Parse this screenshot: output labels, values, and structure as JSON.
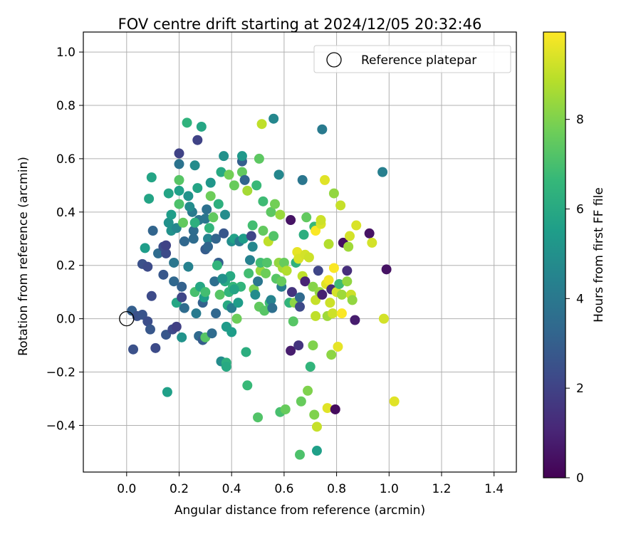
{
  "chart_data": {
    "type": "scatter",
    "title": "FOV centre drift starting at 2024/12/05 20:32:46",
    "xlabel": "Angular distance from reference (arcmin)",
    "ylabel": "Rotation from reference (arcmin)",
    "xlim": [
      -0.165,
      1.485
    ],
    "ylim": [
      -0.575,
      1.075
    ],
    "xticks": [
      "0.0",
      "0.2",
      "0.4",
      "0.6",
      "0.8",
      "1.0",
      "1.2",
      "1.4"
    ],
    "xtick_values": [
      0,
      0.2,
      0.4,
      0.6,
      0.8,
      1.0,
      1.2,
      1.4
    ],
    "yticks": [
      "−0.4",
      "−0.2",
      "0.0",
      "0.2",
      "0.4",
      "0.6",
      "0.8",
      "1.0"
    ],
    "ytick_values": [
      -0.4,
      -0.2,
      0,
      0.2,
      0.4,
      0.6,
      0.8,
      1.0
    ],
    "grid": true,
    "legend": {
      "placement": "top-right",
      "label": "Reference platepar"
    },
    "reference_point": {
      "x": 0.0,
      "y": 0.0
    },
    "colorbar": {
      "label": "Hours from first FF file",
      "range": [
        0,
        9.95
      ],
      "ticks": [
        "0",
        "2",
        "4",
        "6",
        "8"
      ],
      "tick_values": [
        0,
        2,
        4,
        6,
        8
      ],
      "colormap": "viridis",
      "colormap_stops": [
        "#440154",
        "#482878",
        "#3e4989",
        "#31688e",
        "#26828e",
        "#1f9e89",
        "#35b779",
        "#6ece58",
        "#b5de2b",
        "#fde725"
      ]
    },
    "points": [
      [
        0.02,
        0.03,
        3.0
      ],
      [
        0.025,
        -0.115,
        2.5
      ],
      [
        0.04,
        0.01,
        2.5
      ],
      [
        0.06,
        0.015,
        2.6
      ],
      [
        0.06,
        0.205,
        2.5
      ],
      [
        0.08,
        0.195,
        2.3
      ],
      [
        0.08,
        -0.01,
        2.4
      ],
      [
        0.09,
        -0.04,
        2.7
      ],
      [
        0.095,
        0.085,
        2.3
      ],
      [
        0.1,
        0.33,
        3.2
      ],
      [
        0.11,
        -0.11,
        2.3
      ],
      [
        0.12,
        0.245,
        3.5
      ],
      [
        0.14,
        0.27,
        2.4
      ],
      [
        0.14,
        0.165,
        2.7
      ],
      [
        0.15,
        0.245,
        2.3
      ],
      [
        0.15,
        0.275,
        2.0
      ],
      [
        0.15,
        -0.06,
        2.7
      ],
      [
        0.16,
        0.36,
        5.0
      ],
      [
        0.17,
        0.39,
        5.5
      ],
      [
        0.175,
        -0.04,
        2.2
      ],
      [
        0.18,
        0.21,
        3.9
      ],
      [
        0.18,
        0.14,
        3.3
      ],
      [
        0.19,
        -0.03,
        1.9
      ],
      [
        0.19,
        0.06,
        5.9
      ],
      [
        0.2,
        0.48,
        5.6
      ],
      [
        0.2,
        0.62,
        2.0
      ],
      [
        0.2,
        0.58,
        3.8
      ],
      [
        0.2,
        0.52,
        7.3
      ],
      [
        0.2,
        0.43,
        7.1
      ],
      [
        0.21,
        0.12,
        3.1
      ],
      [
        0.21,
        0.08,
        2.1
      ],
      [
        0.21,
        -0.07,
        5.1
      ],
      [
        0.22,
        0.29,
        3.3
      ],
      [
        0.22,
        0.04,
        3.5
      ],
      [
        0.23,
        0.735,
        6.4
      ],
      [
        0.235,
        0.46,
        5.1
      ],
      [
        0.235,
        0.195,
        4.4
      ],
      [
        0.25,
        0.4,
        4.1
      ],
      [
        0.255,
        0.33,
        3.5
      ],
      [
        0.255,
        0.3,
        3.5
      ],
      [
        0.26,
        0.575,
        4.8
      ],
      [
        0.26,
        0.1,
        7.0
      ],
      [
        0.265,
        0.02,
        4.1
      ],
      [
        0.27,
        0.67,
        2.0
      ],
      [
        0.27,
        0.49,
        5.8
      ],
      [
        0.275,
        0.37,
        3.9
      ],
      [
        0.275,
        -0.065,
        3.4
      ],
      [
        0.28,
        0.12,
        5.9
      ],
      [
        0.285,
        0.72,
        5.9
      ],
      [
        0.29,
        0.06,
        3.1
      ],
      [
        0.29,
        -0.08,
        2.9
      ],
      [
        0.295,
        0.08,
        5.5
      ],
      [
        0.3,
        0.26,
        2.9
      ],
      [
        0.3,
        0.375,
        3.9
      ],
      [
        0.3,
        -0.07,
        7.3
      ],
      [
        0.305,
        0.41,
        3.7
      ],
      [
        0.31,
        0.3,
        4.5
      ],
      [
        0.31,
        0.27,
        3.2
      ],
      [
        0.315,
        0.34,
        6.5
      ],
      [
        0.32,
        0.51,
        5.2
      ],
      [
        0.325,
        -0.055,
        3.5
      ],
      [
        0.33,
        0.38,
        7.5
      ],
      [
        0.335,
        0.14,
        3.6
      ],
      [
        0.34,
        0.3,
        3.2
      ],
      [
        0.34,
        0.02,
        3.3
      ],
      [
        0.35,
        0.43,
        6.3
      ],
      [
        0.35,
        0.21,
        3.0
      ],
      [
        0.355,
        0.09,
        7.3
      ],
      [
        0.36,
        0.55,
        6.0
      ],
      [
        0.36,
        -0.16,
        4.8
      ],
      [
        0.37,
        0.32,
        2.7
      ],
      [
        0.37,
        0.61,
        5.0
      ],
      [
        0.375,
        0.39,
        4.8
      ],
      [
        0.375,
        0.14,
        6.0
      ],
      [
        0.38,
        -0.03,
        5.4
      ],
      [
        0.38,
        -0.165,
        6.3
      ],
      [
        0.38,
        -0.18,
        6.0
      ],
      [
        0.385,
        0.05,
        6.0
      ],
      [
        0.39,
        0.54,
        7.8
      ],
      [
        0.39,
        0.1,
        6.5
      ],
      [
        0.395,
        0.16,
        6.0
      ],
      [
        0.4,
        0.29,
        4.9
      ],
      [
        0.4,
        0.04,
        4.2
      ],
      [
        0.405,
        0.12,
        6.6
      ],
      [
        0.41,
        0.5,
        7.6
      ],
      [
        0.41,
        0.3,
        5.7
      ],
      [
        0.42,
        0.0,
        7.7
      ],
      [
        0.425,
        0.06,
        5.5
      ],
      [
        0.43,
        0.29,
        4.1
      ],
      [
        0.435,
        0.12,
        6.5
      ],
      [
        0.44,
        0.59,
        3.0
      ],
      [
        0.44,
        0.61,
        5.3
      ],
      [
        0.44,
        0.55,
        7.5
      ],
      [
        0.445,
        0.3,
        5.5
      ],
      [
        0.45,
        0.52,
        3.2
      ],
      [
        0.455,
        -0.125,
        6.2
      ],
      [
        0.46,
        -0.25,
        6.7
      ],
      [
        0.46,
        0.48,
        8.6
      ],
      [
        0.465,
        0.17,
        6.9
      ],
      [
        0.47,
        0.22,
        4.4
      ],
      [
        0.475,
        0.31,
        2.1
      ],
      [
        0.48,
        0.27,
        4.6
      ],
      [
        0.48,
        0.35,
        6.9
      ],
      [
        0.485,
        0.11,
        7.9
      ],
      [
        0.49,
        0.09,
        4.8
      ],
      [
        0.495,
        0.5,
        6.7
      ],
      [
        0.5,
        0.14,
        3.9
      ],
      [
        0.5,
        -0.37,
        7.2
      ],
      [
        0.505,
        0.045,
        7.5
      ],
      [
        0.505,
        0.6,
        7.4
      ],
      [
        0.51,
        0.18,
        8.4
      ],
      [
        0.51,
        0.21,
        6.9
      ],
      [
        0.515,
        0.73,
        9.0
      ],
      [
        0.52,
        0.33,
        7.5
      ],
      [
        0.52,
        0.44,
        6.8
      ],
      [
        0.525,
        0.03,
        7.3
      ],
      [
        0.53,
        0.17,
        7.7
      ],
      [
        0.535,
        0.21,
        7.2
      ],
      [
        0.54,
        0.29,
        9.0
      ],
      [
        0.545,
        0.06,
        6.8
      ],
      [
        0.55,
        0.4,
        7.4
      ],
      [
        0.55,
        0.07,
        4.5
      ],
      [
        0.555,
        0.04,
        3.6
      ],
      [
        0.56,
        0.75,
        4.6
      ],
      [
        0.56,
        0.31,
        7.2
      ],
      [
        0.565,
        0.43,
        7.8
      ],
      [
        0.57,
        0.15,
        7.3
      ],
      [
        0.58,
        0.21,
        8.3
      ],
      [
        0.58,
        0.54,
        4.6
      ],
      [
        0.585,
        0.39,
        8.4
      ],
      [
        0.585,
        -0.35,
        7.0
      ],
      [
        0.59,
        0.12,
        4.2
      ],
      [
        0.59,
        0.14,
        7.6
      ],
      [
        0.595,
        0.19,
        8.6
      ],
      [
        0.6,
        0.21,
        7.6
      ],
      [
        0.605,
        -0.34,
        7.6
      ],
      [
        0.61,
        0.18,
        8.8
      ],
      [
        0.62,
        0.06,
        6.5
      ],
      [
        0.625,
        0.37,
        0.5
      ],
      [
        0.625,
        -0.12,
        0.8
      ],
      [
        0.63,
        0.1,
        1.5
      ],
      [
        0.635,
        -0.01,
        7.3
      ],
      [
        0.64,
        0.06,
        8.2
      ],
      [
        0.645,
        0.21,
        6.4
      ],
      [
        0.65,
        0.25,
        9.6
      ],
      [
        0.655,
        0.225,
        9.4
      ],
      [
        0.655,
        -0.1,
        1.5
      ],
      [
        0.66,
        0.045,
        2.2
      ],
      [
        0.66,
        0.08,
        3.4
      ],
      [
        0.66,
        -0.51,
        7.1
      ],
      [
        0.665,
        -0.31,
        7.6
      ],
      [
        0.67,
        0.16,
        9.0
      ],
      [
        0.67,
        0.52,
        3.9
      ],
      [
        0.675,
        0.315,
        6.2
      ],
      [
        0.68,
        0.14,
        1.0
      ],
      [
        0.68,
        0.24,
        9.3
      ],
      [
        0.685,
        0.38,
        7.5
      ],
      [
        0.69,
        -0.27,
        8.0
      ],
      [
        0.695,
        0.23,
        9.2
      ],
      [
        0.7,
        -0.18,
        6.5
      ],
      [
        0.71,
        0.12,
        8.1
      ],
      [
        0.71,
        -0.1,
        8.0
      ],
      [
        0.715,
        -0.36,
        8.0
      ],
      [
        0.715,
        0.345,
        6.7
      ],
      [
        0.72,
        0.33,
        9.9
      ],
      [
        0.72,
        0.07,
        9.1
      ],
      [
        0.72,
        0.01,
        9.0
      ],
      [
        0.725,
        -0.405,
        9.1
      ],
      [
        0.725,
        -0.495,
        5.6
      ],
      [
        0.73,
        0.18,
        2.1
      ],
      [
        0.735,
        0.1,
        8.3
      ],
      [
        0.74,
        0.355,
        9.4
      ],
      [
        0.74,
        0.37,
        9.2
      ],
      [
        0.745,
        0.09,
        0.9
      ],
      [
        0.745,
        0.71,
        4.1
      ],
      [
        0.755,
        0.52,
        9.5
      ],
      [
        0.76,
        0.13,
        9.5
      ],
      [
        0.765,
        0.01,
        8.5
      ],
      [
        0.765,
        -0.335,
        9.5
      ],
      [
        0.77,
        0.28,
        8.8
      ],
      [
        0.77,
        0.145,
        9.8
      ],
      [
        0.775,
        0.06,
        9.2
      ],
      [
        0.78,
        0.11,
        1.2
      ],
      [
        0.78,
        -0.135,
        8.2
      ],
      [
        0.785,
        0.02,
        9.2
      ],
      [
        0.79,
        0.19,
        9.9
      ],
      [
        0.79,
        0.47,
        8.3
      ],
      [
        0.795,
        -0.34,
        0.3
      ],
      [
        0.8,
        0.1,
        9.3
      ],
      [
        0.805,
        -0.105,
        9.6
      ],
      [
        0.81,
        0.13,
        6.8
      ],
      [
        0.815,
        0.425,
        9.1
      ],
      [
        0.82,
        0.02,
        9.9
      ],
      [
        0.82,
        0.09,
        8.5
      ],
      [
        0.825,
        0.285,
        0.4
      ],
      [
        0.84,
        0.14,
        8.3
      ],
      [
        0.84,
        0.18,
        1.3
      ],
      [
        0.845,
        0.27,
        8.5
      ],
      [
        0.85,
        0.31,
        9.3
      ],
      [
        0.855,
        0.09,
        9.2
      ],
      [
        0.86,
        0.07,
        8.3
      ],
      [
        0.87,
        -0.005,
        0.8
      ],
      [
        0.875,
        0.35,
        9.4
      ],
      [
        0.925,
        0.32,
        0.5
      ],
      [
        0.935,
        0.285,
        9.3
      ],
      [
        0.975,
        0.55,
        4.3
      ],
      [
        0.98,
        0.0,
        9.3
      ],
      [
        0.99,
        0.185,
        0.5
      ],
      [
        1.02,
        -0.31,
        9.5
      ],
      [
        0.155,
        -0.275,
        5.6
      ],
      [
        0.085,
        0.45,
        5.8
      ],
      [
        0.095,
        0.53,
        5.8
      ],
      [
        0.07,
        0.265,
        5.5
      ],
      [
        0.16,
        0.47,
        5.8
      ],
      [
        0.17,
        0.33,
        5.0
      ],
      [
        0.19,
        0.34,
        4.6
      ],
      [
        0.215,
        0.36,
        7.5
      ],
      [
        0.24,
        0.42,
        4.8
      ],
      [
        0.26,
        0.36,
        6.3
      ],
      [
        0.32,
        0.46,
        7.7
      ],
      [
        0.345,
        0.2,
        6.5
      ],
      [
        0.365,
        0.15,
        5.0
      ],
      [
        0.41,
        0.11,
        5.8
      ],
      [
        0.4,
        -0.05,
        5.5
      ],
      [
        0.3,
        0.1,
        6.9
      ]
    ]
  }
}
